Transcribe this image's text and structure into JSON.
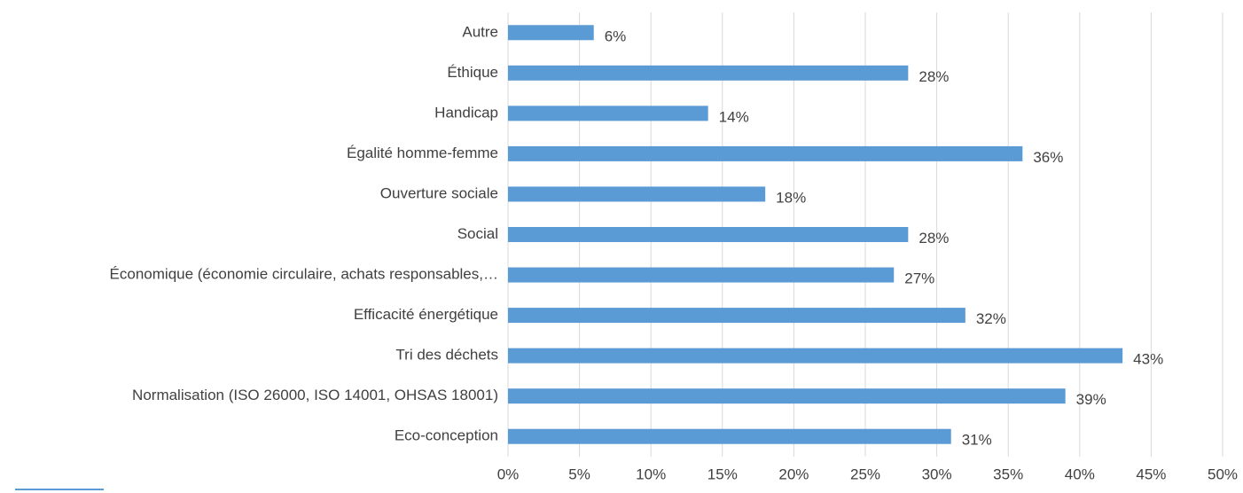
{
  "chart_data": {
    "type": "hbar",
    "categories": [
      "Autre",
      "Éthique",
      "Handicap",
      "Égalité homme-femme",
      "Ouverture sociale",
      "Social",
      "Économique (économie circulaire, achats responsables,…",
      "Efficacité énergétique",
      "Tri des déchets",
      "Normalisation (ISO 26000, ISO 14001, OHSAS 18001)",
      "Eco-conception"
    ],
    "values": [
      6,
      28,
      14,
      36,
      18,
      28,
      27,
      32,
      43,
      39,
      31
    ],
    "value_labels": [
      "6%",
      "28%",
      "14%",
      "36%",
      "18%",
      "28%",
      "27%",
      "32%",
      "43%",
      "39%",
      "31%"
    ],
    "color": "#5b9bd5",
    "xlim": [
      0,
      50
    ],
    "xticks": [
      {
        "value": 0,
        "label": "0%"
      },
      {
        "value": 5,
        "label": "5%"
      },
      {
        "value": 10,
        "label": "10%"
      },
      {
        "value": 15,
        "label": "15%"
      },
      {
        "value": 20,
        "label": "20%"
      },
      {
        "value": 25,
        "label": "25%"
      },
      {
        "value": 30,
        "label": "30%"
      },
      {
        "value": 35,
        "label": "35%"
      },
      {
        "value": 40,
        "label": "40%"
      },
      {
        "value": 45,
        "label": "45%"
      },
      {
        "value": 50,
        "label": "50%"
      }
    ],
    "grid": true
  }
}
